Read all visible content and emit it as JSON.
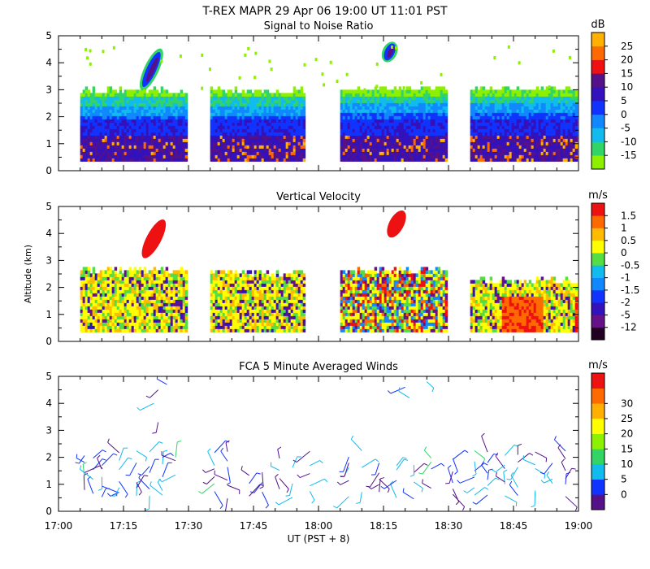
{
  "figure": {
    "title": "T-REX  MAPR 29 Apr 06  19:00 UT  11:01  PST",
    "xlabel": "UT  (PST + 8)",
    "ylabel": "Altitude (km)",
    "xticks": [
      "17:00",
      "17:15",
      "17:30",
      "17:45",
      "18:00",
      "18:15",
      "18:30",
      "18:45",
      "19:00"
    ]
  },
  "chart_data": [
    {
      "type": "heatmap",
      "title": "Signal to Noise Ratio",
      "xlim": [
        0,
        120
      ],
      "ylim": [
        0,
        5
      ],
      "ylabel": "Altitude (km)",
      "yticks": [
        "0",
        "1",
        "2",
        "3",
        "4",
        "5"
      ],
      "colorbar": {
        "unit": "dB",
        "labels": [
          "-15",
          "-10",
          "-5",
          "0",
          "5",
          "10",
          "15",
          "20",
          "25"
        ],
        "colors": [
          "#8cf000",
          "#33d466",
          "#11bbee",
          "#1188ff",
          "#1133ff",
          "#3311bb",
          "#551188",
          "#ee1111",
          "#ff6a00",
          "#ffb000"
        ]
      },
      "segments": [
        {
          "t0": 5,
          "t1": 30,
          "top": 2.9
        },
        {
          "t0": 35,
          "t1": 57,
          "top": 2.9
        },
        {
          "t0": 65,
          "t1": 90,
          "top": 3.0
        },
        {
          "t0": 95,
          "t1": 120,
          "top": 3.0
        }
      ],
      "features": [
        {
          "t": 22,
          "z0": 2.9,
          "z1": 4.6,
          "value": 8
        },
        {
          "t": 77,
          "z0": 4.0,
          "z1": 4.8,
          "value": 8
        }
      ]
    },
    {
      "type": "heatmap",
      "title": "Vertical Velocity",
      "xlim": [
        0,
        120
      ],
      "ylim": [
        0,
        5
      ],
      "ylabel": "Altitude (km)",
      "yticks": [
        "0",
        "1",
        "2",
        "3",
        "4",
        "5"
      ],
      "colorbar": {
        "unit": "m/s",
        "labels": [
          "-12",
          "-5",
          "-2",
          "-1.5",
          "-1",
          "-0.5",
          "0",
          "0.5",
          "1",
          "1.5"
        ],
        "colors": [
          "#220022",
          "#661188",
          "#3311bb",
          "#1133ff",
          "#1188ff",
          "#11bbee",
          "#55dd44",
          "#ffff00",
          "#ffbb00",
          "#ff6a00",
          "#ee1111"
        ]
      },
      "segments": [
        {
          "t0": 5,
          "t1": 30,
          "top": 2.6
        },
        {
          "t0": 35,
          "t1": 57,
          "top": 2.5
        },
        {
          "t0": 65,
          "t1": 90,
          "top": 2.6
        },
        {
          "t0": 95,
          "t1": 120,
          "top": 2.2
        }
      ],
      "features": [
        {
          "t": 22,
          "z0": 3.0,
          "z1": 4.6,
          "value": 1.8
        },
        {
          "t": 78,
          "z0": 3.8,
          "z1": 4.9,
          "value": 1.8
        }
      ]
    },
    {
      "type": "scatter",
      "title": "FCA 5 Minute Averaged Winds",
      "xlim": [
        0,
        120
      ],
      "ylim": [
        0,
        5
      ],
      "ylabel": "Altitude (km)",
      "yticks": [
        "0",
        "1",
        "2",
        "3",
        "4",
        "5"
      ],
      "colorbar": {
        "unit": "m/s",
        "labels": [
          "0",
          "5",
          "10",
          "15",
          "20",
          "25",
          "30"
        ],
        "colors": [
          "#551188",
          "#1133ff",
          "#11bbee",
          "#33d466",
          "#8cf000",
          "#ffff00",
          "#ffb000",
          "#ff6a00",
          "#ee1111"
        ]
      },
      "barb_times": [
        6,
        8,
        10,
        14,
        18,
        21,
        24,
        27,
        36,
        39,
        44,
        47,
        51,
        54,
        58,
        67,
        70,
        74,
        78,
        82,
        86,
        91,
        96,
        99,
        103,
        106,
        110,
        114,
        117
      ],
      "barb_altitudes": [
        0.6,
        0.9,
        1.2,
        1.5,
        1.8,
        2.1
      ],
      "high_barbs": [
        {
          "t": 23,
          "z": 4.5
        },
        {
          "t": 22,
          "z": 4.0
        },
        {
          "t": 23,
          "z": 3.3
        },
        {
          "t": 25,
          "z": 4.7
        },
        {
          "t": 80,
          "z": 4.6
        },
        {
          "t": 81,
          "z": 4.2
        },
        {
          "t": 85,
          "z": 4.8
        }
      ]
    }
  ]
}
